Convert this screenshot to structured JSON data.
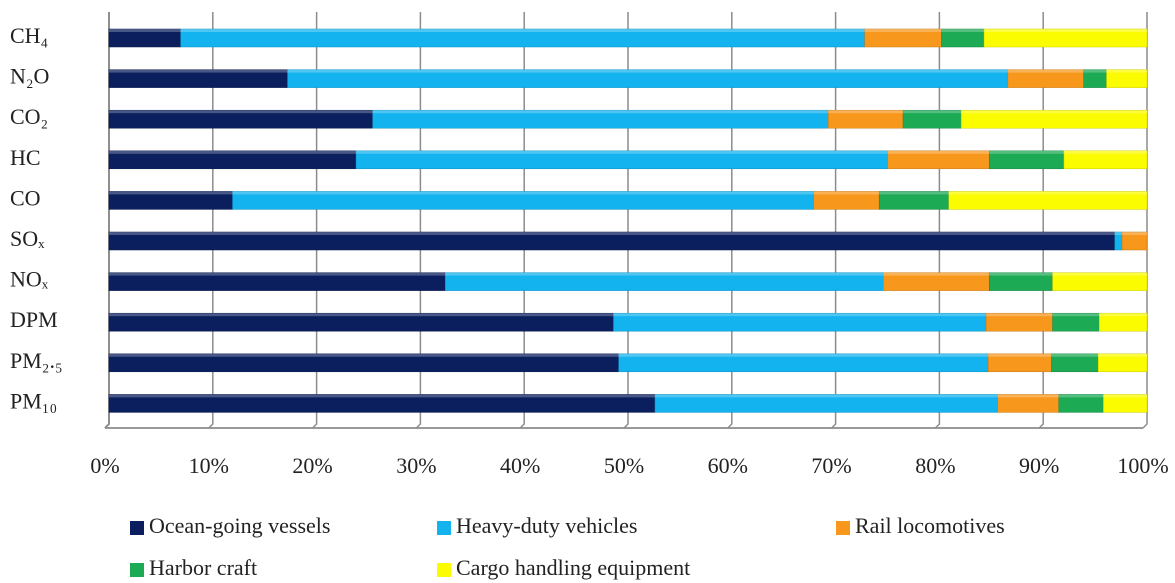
{
  "chart_data": {
    "type": "stacked_barh",
    "categories": [
      "CH₄",
      "N₂O",
      "CO₂",
      "HC",
      "CO",
      "SOₓ",
      "NOₓ",
      "DPM",
      "PM₂.₅",
      "PM₁₀"
    ],
    "series": [
      {
        "name": "Ocean-going vessels",
        "color": "#0b1f5e",
        "values": [
          6.9,
          17.2,
          25.4,
          23.8,
          11.9,
          96.9,
          32.4,
          48.6,
          49.1,
          52.6
        ]
      },
      {
        "name": "Heavy-duty vehicles",
        "color": "#12b3ef",
        "values": [
          65.9,
          69.4,
          43.9,
          51.2,
          56.0,
          0.7,
          42.2,
          35.9,
          35.6,
          33.0
        ]
      },
      {
        "name": "Rail locomotives",
        "color": "#f7981d",
        "values": [
          7.4,
          7.3,
          7.2,
          9.8,
          6.3,
          2.4,
          10.2,
          6.4,
          6.1,
          5.9
        ]
      },
      {
        "name": "Harbor craft",
        "color": "#1caa55",
        "values": [
          4.1,
          2.2,
          5.6,
          7.2,
          6.7,
          0,
          6.1,
          4.5,
          4.5,
          4.3
        ]
      },
      {
        "name": "Cargo handling equipment",
        "color": "#fcfc00",
        "values": [
          15.7,
          3.9,
          17.9,
          8.0,
          19.1,
          0,
          9.1,
          4.6,
          4.7,
          4.2
        ]
      }
    ],
    "xlim": [
      0,
      100
    ],
    "xticks": [
      {
        "value": 0,
        "label": "0%"
      },
      {
        "value": 10,
        "label": "10%"
      },
      {
        "value": 20,
        "label": "20%"
      },
      {
        "value": 30,
        "label": "30%"
      },
      {
        "value": 40,
        "label": "40%"
      },
      {
        "value": 50,
        "label": "50%"
      },
      {
        "value": 60,
        "label": "60%"
      },
      {
        "value": 70,
        "label": "70%"
      },
      {
        "value": 80,
        "label": "80%"
      },
      {
        "value": 90,
        "label": "90%"
      },
      {
        "value": 100,
        "label": "100%"
      }
    ],
    "grid": true,
    "legend": "bottom"
  }
}
